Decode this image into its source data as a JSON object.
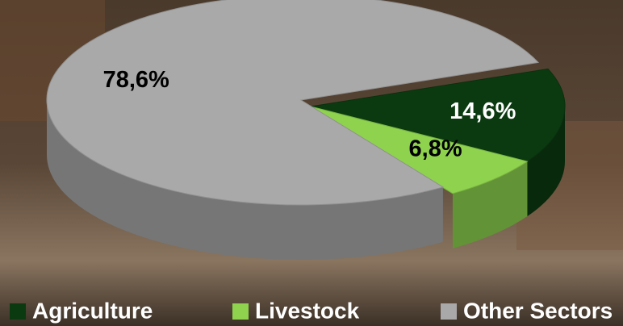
{
  "chart_data": {
    "type": "pie3d",
    "categories": [
      "Agriculture",
      "Livestock",
      "Other Sectors"
    ],
    "values": [
      14.6,
      6.8,
      78.6
    ],
    "value_labels": [
      "14,6%",
      "6,8%",
      "78,6%"
    ],
    "colors": [
      "#0b3a10",
      "#8ed24e",
      "#a9a9a9"
    ],
    "label_colors": [
      "#ffffff",
      "#000000",
      "#000000"
    ]
  }
}
